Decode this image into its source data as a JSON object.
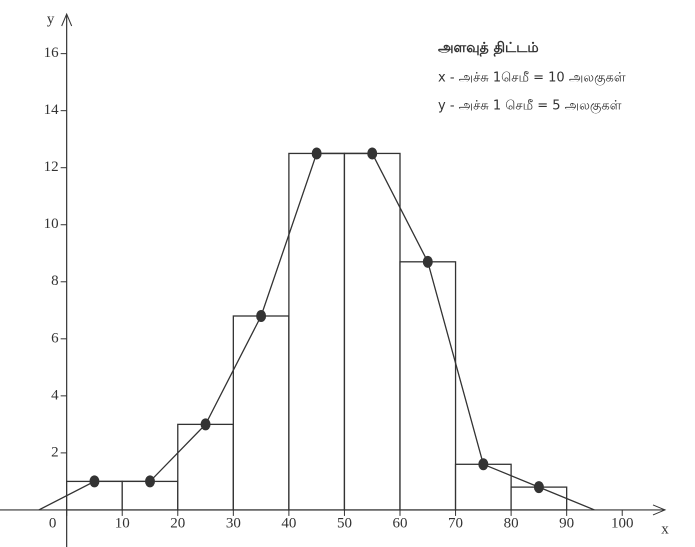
{
  "chart_data": {
    "type": "histogram",
    "bins": [
      0,
      10,
      20,
      30,
      40,
      50,
      60,
      70,
      80,
      90
    ],
    "counts": [
      1,
      1,
      3,
      6.8,
      12.5,
      12.5,
      8.7,
      1.6,
      0.8
    ],
    "polygon": {
      "x": [
        -5,
        5,
        15,
        25,
        35,
        45,
        55,
        65,
        75,
        85,
        95
      ],
      "y": [
        0,
        1,
        1,
        3,
        6.8,
        12.5,
        12.5,
        8.7,
        1.6,
        0.8,
        0
      ]
    },
    "xlabel": "x",
    "ylabel": "y",
    "xlim": [
      -12,
      105
    ],
    "ylim": [
      -1.3,
      17.6
    ],
    "xticks": [
      0,
      10,
      20,
      30,
      40,
      50,
      60,
      70,
      80,
      90,
      100
    ],
    "yticks": [
      2,
      4,
      6,
      8,
      10,
      12,
      14,
      16
    ],
    "scale_title": "அளவுத் திட்டம்",
    "scale_lines": [
      "x - அச்சு 1செமீ = 10 அலகுகள்",
      "y - அச்சு 1 செமீ = 5 அலகுகள்"
    ]
  }
}
